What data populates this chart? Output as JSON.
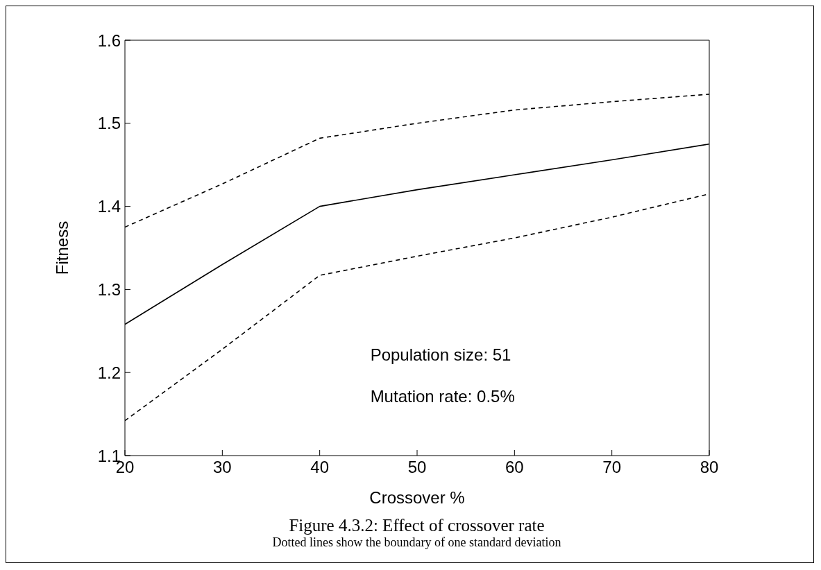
{
  "chart_data": {
    "type": "line",
    "title": "Figure 4.3.2: Effect of crossover rate",
    "subtitle": "Dotted lines show the boundary of one standard deviation",
    "xlabel": "Crossover %",
    "ylabel": "Fitness",
    "x": [
      20,
      30,
      40,
      50,
      60,
      70,
      80
    ],
    "series": [
      {
        "color": "#000000",
        "line_style": "dashed",
        "values": [
          1.375,
          1.427,
          1.482,
          1.5,
          1.516,
          1.526,
          1.535
        ]
      },
      {
        "color": "#000000",
        "line_style": "solid",
        "values": [
          1.258,
          1.33,
          1.4,
          1.42,
          1.438,
          1.456,
          1.475
        ]
      },
      {
        "color": "#000000",
        "line_style": "dashed",
        "values": [
          1.142,
          1.228,
          1.317,
          1.34,
          1.362,
          1.387,
          1.415
        ]
      }
    ],
    "xlim": [
      20,
      80
    ],
    "xticks": [
      20,
      30,
      40,
      50,
      60,
      70,
      80
    ],
    "ylim": [
      1.1,
      1.6
    ],
    "yticks": [
      1.1,
      1.2,
      1.3,
      1.4,
      1.5,
      1.6
    ],
    "annotations": [
      "Population size: 51",
      "Mutation rate: 0.5%"
    ],
    "grid": false,
    "legend": false,
    "marker": "none"
  }
}
